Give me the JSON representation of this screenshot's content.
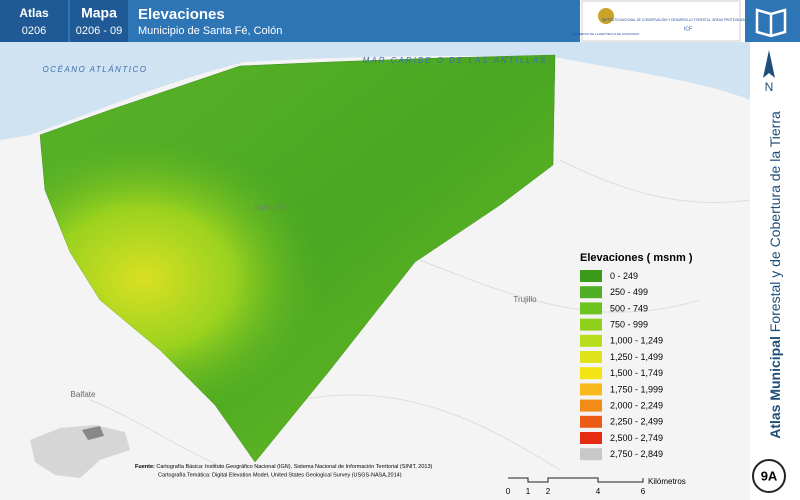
{
  "header": {
    "atlas_label": "Atlas",
    "atlas_code": "0206",
    "map_label": "Mapa",
    "map_code": "0206 - 09",
    "title": "Elevaciones",
    "subtitle": "Municipio de Santa Fé, Colón"
  },
  "logos": {
    "government": "GOBIERNO DE LA REPÚBLICA DE HONDURAS",
    "institute": "INSTITUTO NACIONAL DE CONSERVACIÓN Y DESARROLLO FORESTAL, ÁREAS PROTEGIDAS Y VIDA SILVESTRE",
    "institute_short": "ICF"
  },
  "map_labels": {
    "ocean": "OCÉANO ATLÁNTICO",
    "sea": "MAR CARIBE O DE LAS ANTILLAS",
    "santa_fe": "Santa Fé",
    "trujillo": "Trujillo",
    "balfate": "Balfate"
  },
  "legend": {
    "title": "Elevaciones ( msnm )",
    "items": [
      {
        "label": "0 - 249",
        "color": "#3c9a1b"
      },
      {
        "label": "250 - 499",
        "color": "#4fae24"
      },
      {
        "label": "500 - 749",
        "color": "#6dc21e"
      },
      {
        "label": "750 - 999",
        "color": "#8fd01c"
      },
      {
        "label": "1,000 - 1,249",
        "color": "#b8dd1c"
      },
      {
        "label": "1,250 - 1,499",
        "color": "#dfe31b"
      },
      {
        "label": "1,500 - 1,749",
        "color": "#f4e414"
      },
      {
        "label": "1,750 - 1,999",
        "color": "#f7b91b"
      },
      {
        "label": "2,000 - 2,249",
        "color": "#f18c18"
      },
      {
        "label": "2,250 - 2,499",
        "color": "#eb5b15"
      },
      {
        "label": "2,500 - 2,749",
        "color": "#e52b12"
      },
      {
        "label": "2,750 - 2,849",
        "color": "#c8c8c8"
      }
    ]
  },
  "sidebar": {
    "north": "N",
    "series_bold": "Atlas Municipal",
    "series_rest": "Forestal y de Cobertura de la Tierra",
    "sheet": "9A"
  },
  "source": {
    "label": "Fuente:",
    "line1": "Cartografía Básica: Instituto Geográfico Nacional (IGN), Sistema Nacional de Información Territorial (SINIT, 2013)",
    "line2": "Cartografía Temática: Digital Elevation Model, United States Geological Survey (USGS-NASA,2014)"
  },
  "scale": {
    "ticks": [
      "0",
      "1",
      "2",
      "4",
      "6"
    ],
    "unit": "Kilómetros"
  }
}
